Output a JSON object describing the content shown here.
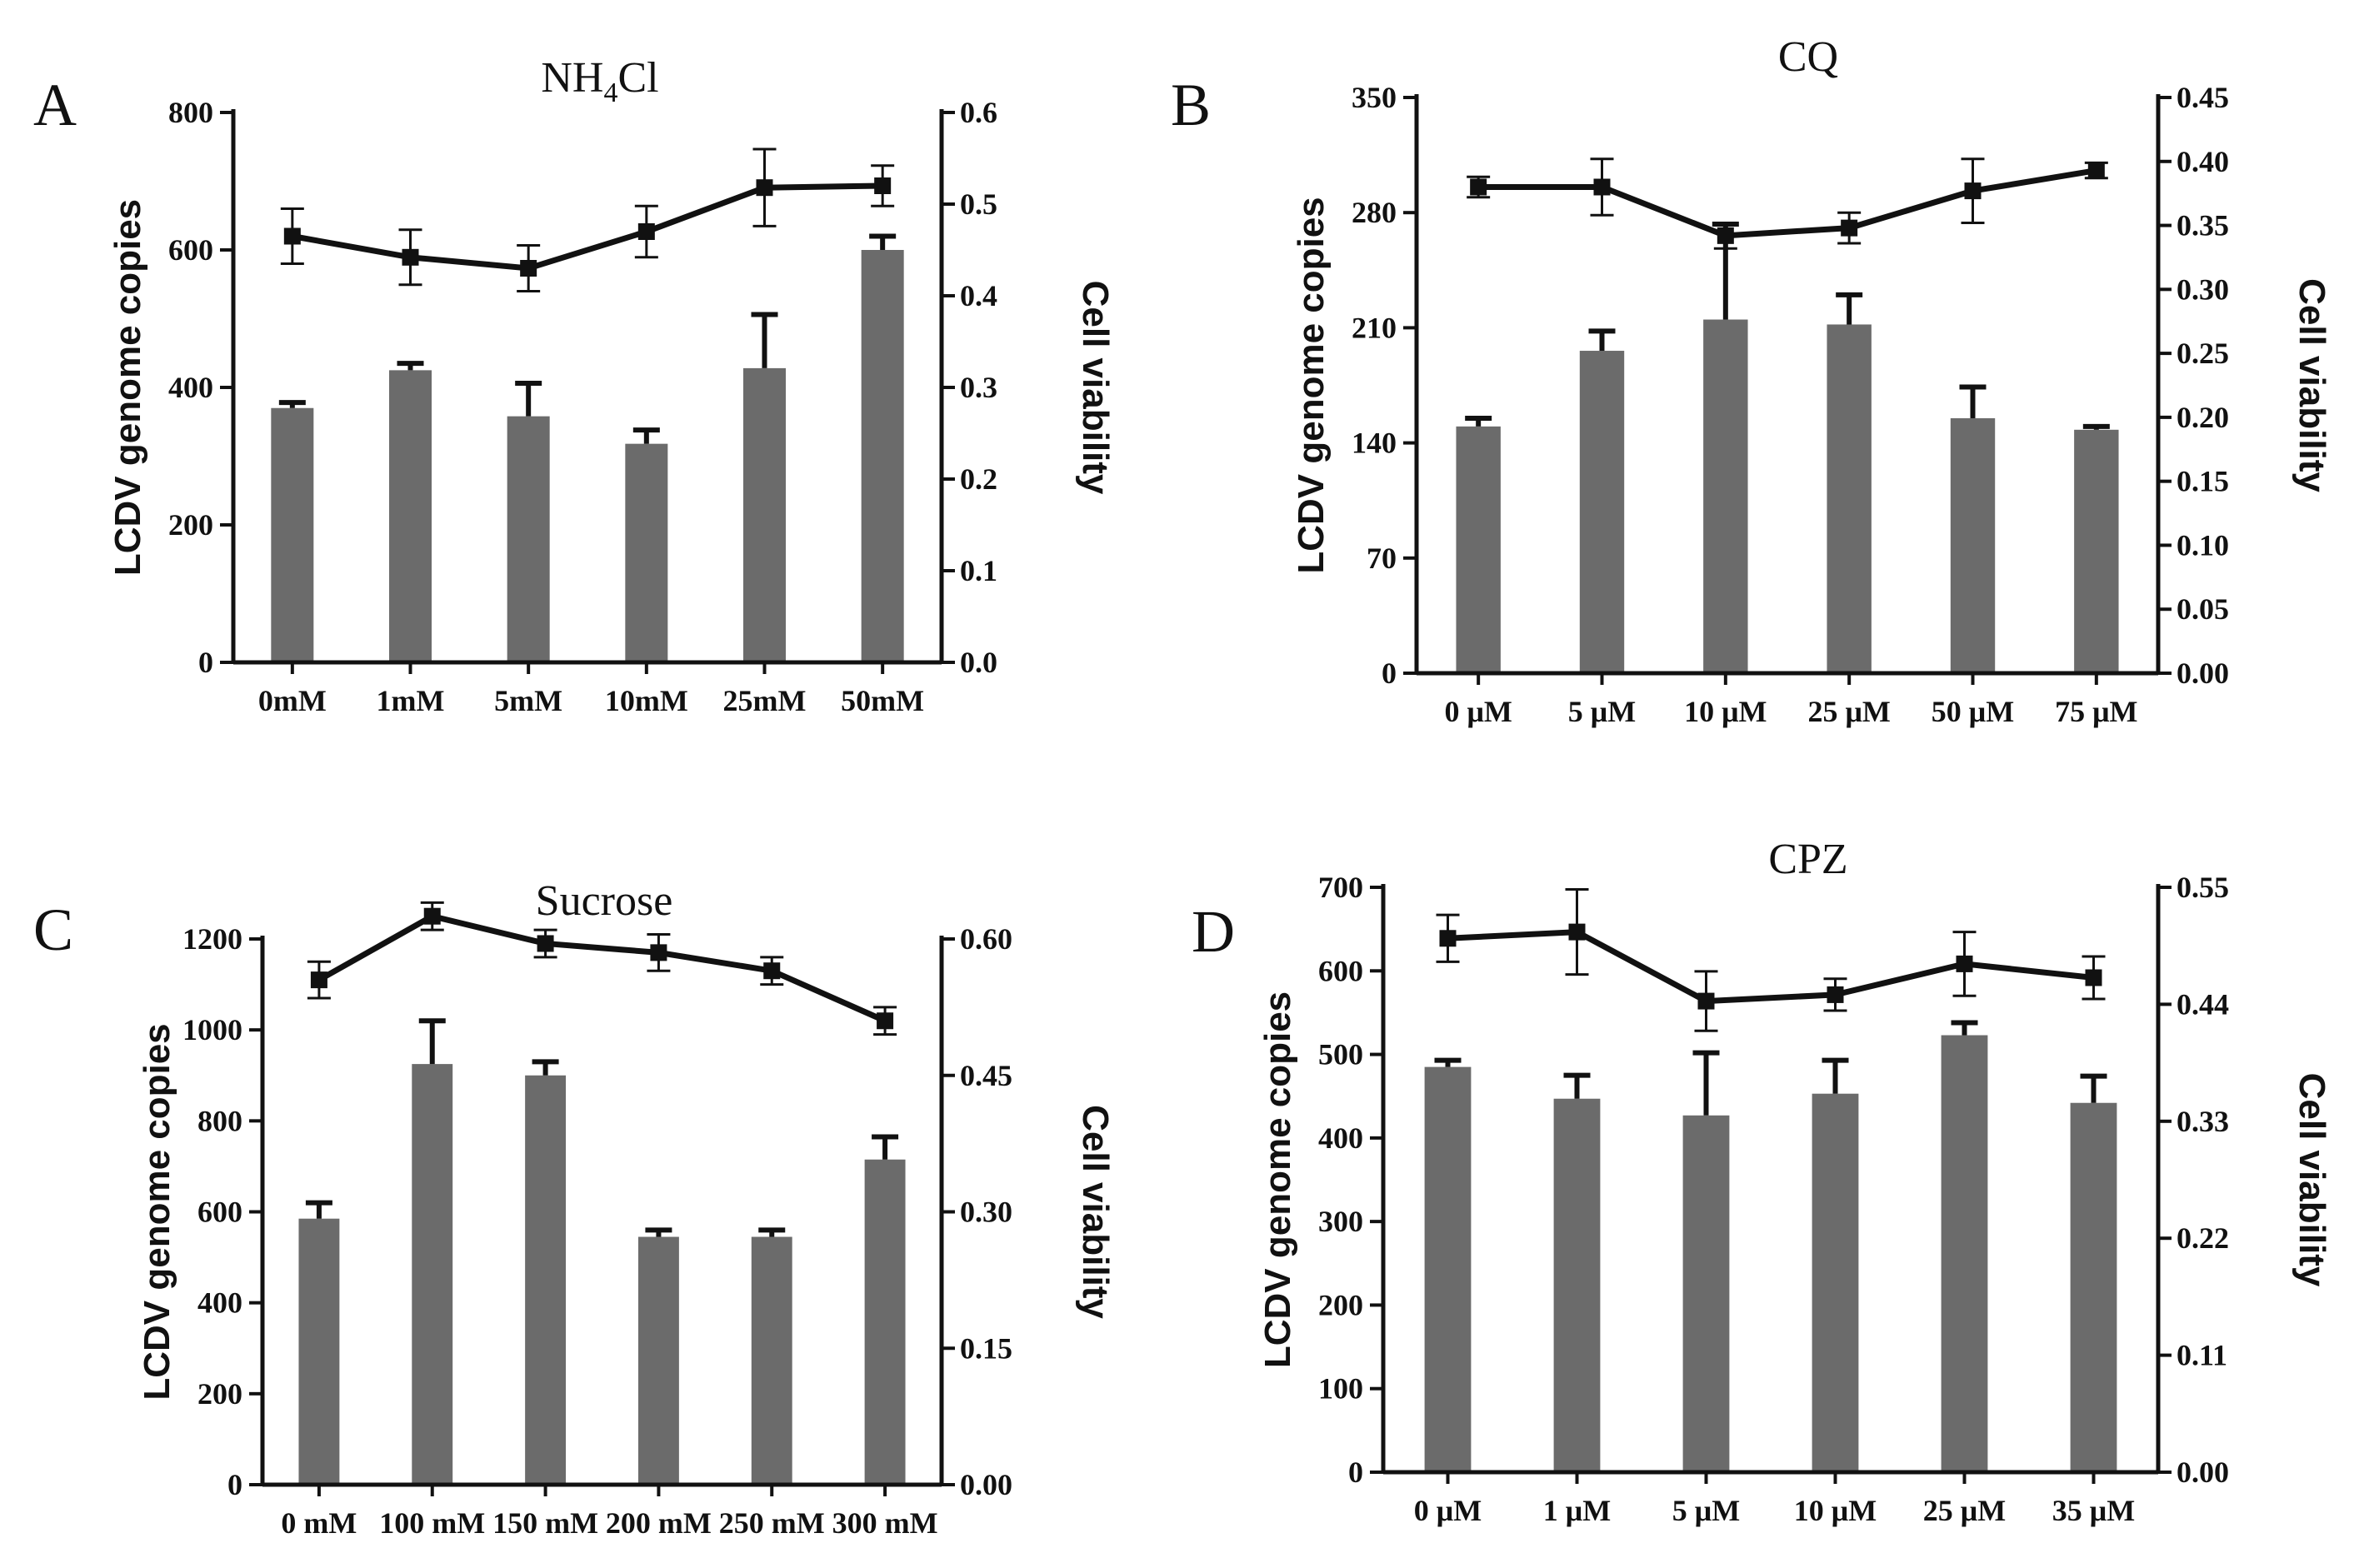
{
  "figure": {
    "bar_color": "#6b6b6b",
    "line_color": "#111111",
    "left_axis_label": "LCDV genome copies",
    "right_axis_label": "Cell viability"
  },
  "chart_data": [
    {
      "panel": "A",
      "type": "bar+line",
      "title": "NH4Cl",
      "title_main": "NH",
      "title_sub": "4",
      "title_tail": "Cl",
      "categories": [
        "0mM",
        "1mM",
        "5mM",
        "10mM",
        "25mM",
        "50mM"
      ],
      "bar_values": [
        370,
        425,
        358,
        318,
        428,
        600
      ],
      "bar_errors": [
        8,
        10,
        48,
        20,
        78,
        20
      ],
      "line_values": [
        0.465,
        0.442,
        0.43,
        0.47,
        0.518,
        0.52
      ],
      "line_errors": [
        0.03,
        0.03,
        0.025,
        0.028,
        0.042,
        0.022
      ],
      "ylabel": "LCDV genome copies",
      "y2label": "Cell viability",
      "ylim": [
        0,
        800
      ],
      "y_ticks": [
        0,
        200,
        400,
        600,
        800
      ],
      "y2lim": [
        0,
        0.6
      ],
      "y2_ticks": [
        "0.0",
        "0.1",
        "0.2",
        "0.3",
        "0.4",
        "0.5",
        "0.6"
      ]
    },
    {
      "panel": "B",
      "type": "bar+line",
      "title": "CQ",
      "title_main": "CQ",
      "title_sub": "",
      "title_tail": "",
      "categories": [
        "0 μM",
        "5 μM",
        "10 μM",
        "25 μM",
        "50 μM",
        "75 μM"
      ],
      "bar_values": [
        150,
        196,
        215,
        212,
        155,
        148
      ],
      "bar_errors": [
        5,
        12,
        58,
        18,
        19,
        2
      ],
      "line_values": [
        0.38,
        0.38,
        0.342,
        0.348,
        0.377,
        0.393
      ],
      "line_errors": [
        0.008,
        0.022,
        0.01,
        0.012,
        0.025,
        0.006
      ],
      "ylabel": "LCDV genome copies",
      "y2label": "Cell viability",
      "ylim": [
        0,
        350
      ],
      "y_ticks": [
        0,
        70,
        140,
        210,
        280,
        350
      ],
      "y2lim": [
        0,
        0.45
      ],
      "y2_ticks": [
        "0.00",
        "0.05",
        "0.10",
        "0.15",
        "0.20",
        "0.25",
        "0.30",
        "0.35",
        "0.40",
        "0.45"
      ]
    },
    {
      "panel": "C",
      "type": "bar+line",
      "title": "Sucrose",
      "title_main": "Sucrose",
      "title_sub": "",
      "title_tail": "",
      "categories": [
        "0 mM",
        "100 mM",
        "150 mM",
        "200 mM",
        "250 mM",
        "300 mM"
      ],
      "bar_values": [
        585,
        925,
        900,
        545,
        545,
        715
      ],
      "bar_errors": [
        35,
        95,
        30,
        15,
        15,
        50
      ],
      "line_values": [
        0.555,
        0.625,
        0.595,
        0.585,
        0.565,
        0.51
      ],
      "line_errors": [
        0.02,
        0.015,
        0.015,
        0.02,
        0.015,
        0.015
      ],
      "ylabel": "LCDV genome copies",
      "y2label": "Cell viability",
      "ylim": [
        0,
        1200
      ],
      "y_ticks": [
        0,
        200,
        400,
        600,
        800,
        1000,
        1200
      ],
      "y2lim": [
        0,
        0.6
      ],
      "y2_ticks": [
        "0.00",
        "0.15",
        "0.30",
        "0.45",
        "0.60"
      ]
    },
    {
      "panel": "D",
      "type": "bar+line",
      "title": "CPZ",
      "title_main": "CPZ",
      "title_sub": "",
      "title_tail": "",
      "categories": [
        "0 μM",
        "1 μM",
        "5 μM",
        "10 μM",
        "25 μM",
        "35 μM"
      ],
      "bar_values": [
        485,
        447,
        427,
        453,
        523,
        442
      ],
      "bar_errors": [
        8,
        28,
        75,
        40,
        15,
        32
      ],
      "line_values": [
        0.502,
        0.508,
        0.443,
        0.449,
        0.478,
        0.465
      ],
      "line_errors": [
        0.022,
        0.04,
        0.028,
        0.015,
        0.03,
        0.02
      ],
      "ylabel": "LCDV genome copies",
      "y2label": "Cell viability",
      "ylim": [
        0,
        700
      ],
      "y_ticks": [
        0,
        100,
        200,
        300,
        400,
        500,
        600,
        700
      ],
      "y2lim": [
        0,
        0.55
      ],
      "y2_ticks": [
        "0.00",
        "0.11",
        "0.22",
        "0.33",
        "0.44",
        "0.55"
      ]
    }
  ]
}
